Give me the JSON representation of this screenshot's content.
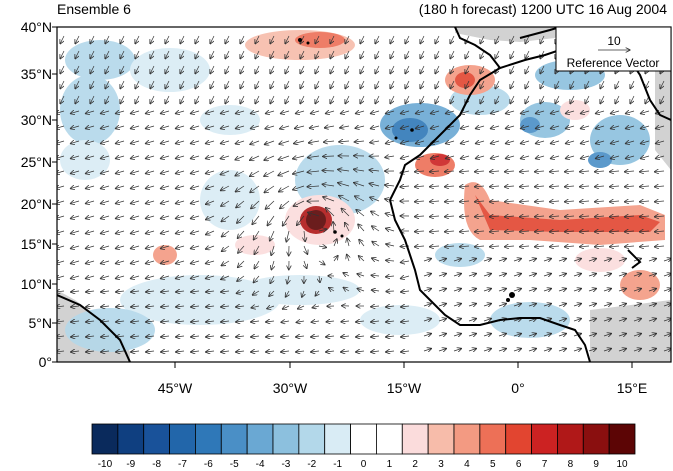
{
  "header": {
    "left_title": "Ensemble 6",
    "right_title": "(180 h forecast) 1200 UTC 16 Aug 2004"
  },
  "map": {
    "lat_labels": [
      "40°N",
      "35°N",
      "30°N",
      "25°N",
      "20°N",
      "15°N",
      "10°N",
      "5°N",
      "0°"
    ],
    "lon_labels": [
      "45°W",
      "30°W",
      "15°W",
      "0°",
      "15°E"
    ],
    "lat_range": [
      0,
      40
    ],
    "lon_range": [
      -60,
      20
    ],
    "land_color": "#d2d2d2",
    "coast_color": "#000000",
    "reference_vector": {
      "magnitude_label": "10",
      "caption": "Reference Vector"
    }
  },
  "colorbar": {
    "labels": [
      "-10",
      "-9",
      "-8",
      "-7",
      "-6",
      "-5",
      "-4",
      "-3",
      "-2",
      "-1",
      "0",
      "1",
      "2",
      "3",
      "4",
      "5",
      "6",
      "7",
      "8",
      "9",
      "10"
    ],
    "colors": [
      "#0a2a5c",
      "#0f3f80",
      "#19529a",
      "#2266aa",
      "#2f78b8",
      "#4a8fc6",
      "#6aa8d3",
      "#8cc0de",
      "#b3d8ea",
      "#d9ecf5",
      "#ffffff",
      "#ffffff",
      "#fbdcdc",
      "#f7bcaa",
      "#f39a82",
      "#ed7057",
      "#e24530",
      "#cc2222",
      "#b01818",
      "#8a0f0f",
      "#5c0505"
    ]
  }
}
